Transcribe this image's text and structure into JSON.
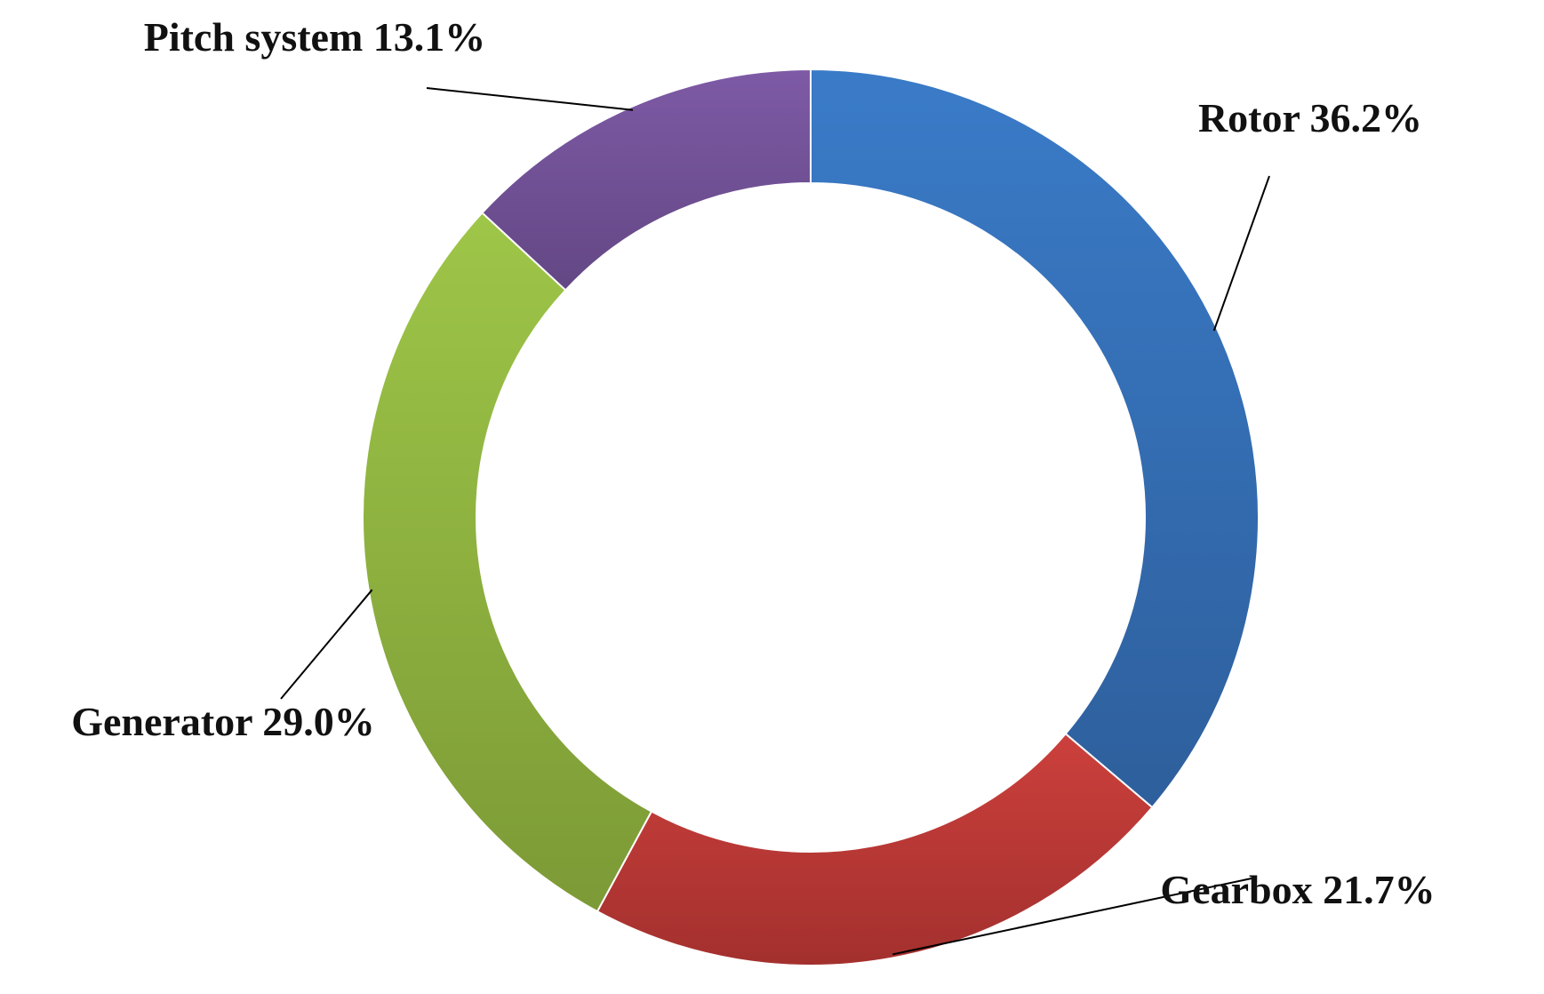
{
  "chart_data": {
    "type": "pie",
    "variant": "donut",
    "title": "",
    "legend": "none",
    "slices": [
      {
        "key": "rotor",
        "label": "Rotor 36.2%",
        "category": "Rotor",
        "value": 36.2,
        "color": "#3a7bc8",
        "color_dark": "#2e5f9c"
      },
      {
        "key": "gearbox",
        "label": "Gearbox 21.7%",
        "category": "Gearbox",
        "value": 21.7,
        "color": "#cc403c",
        "color_dark": "#a3302e"
      },
      {
        "key": "generator",
        "label": "Generator 29.0%",
        "category": "Generator",
        "value": 29.0,
        "color": "#9ec648",
        "color_dark": "#7c9a36"
      },
      {
        "key": "pitch-system",
        "label": "Pitch system 13.1%",
        "category": "Pitch system",
        "value": 13.1,
        "color": "#7e5aa6",
        "color_dark": "#634784"
      }
    ]
  }
}
